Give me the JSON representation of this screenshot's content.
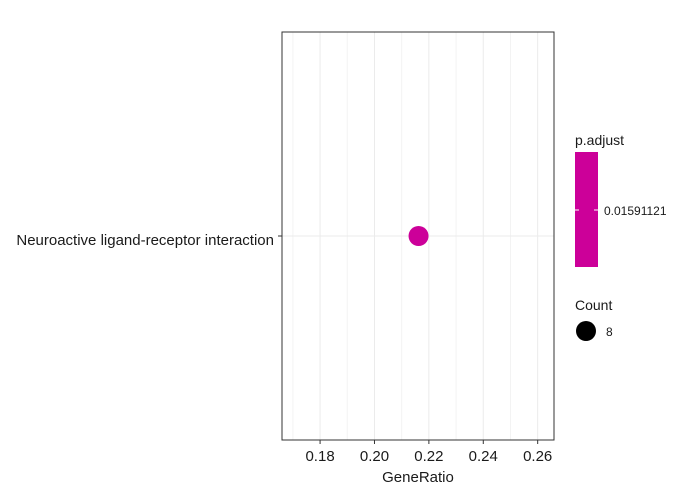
{
  "chart_data": {
    "type": "scatter",
    "title": "",
    "xlabel": "GeneRatio",
    "ylabel": "",
    "xlim": [
      0.166,
      0.266
    ],
    "x_ticks": [
      0.18,
      0.2,
      0.22,
      0.24,
      0.26
    ],
    "x_tick_labels": [
      "0.18",
      "0.20",
      "0.22",
      "0.24",
      "0.26"
    ],
    "categories": [
      "Neuroactive ligand-receptor interaction"
    ],
    "points": [
      {
        "category": "Neuroactive ligand-receptor interaction",
        "x": 0.2162,
        "count": 8,
        "p_adjust": 0.01591121,
        "color": "#cc0099"
      }
    ],
    "grid": true,
    "legend_position": "right",
    "legend": {
      "color_title": "p.adjust",
      "color_label": "0.01591121",
      "color": "#cc0099",
      "size_title": "Count",
      "size_label": "8"
    }
  }
}
